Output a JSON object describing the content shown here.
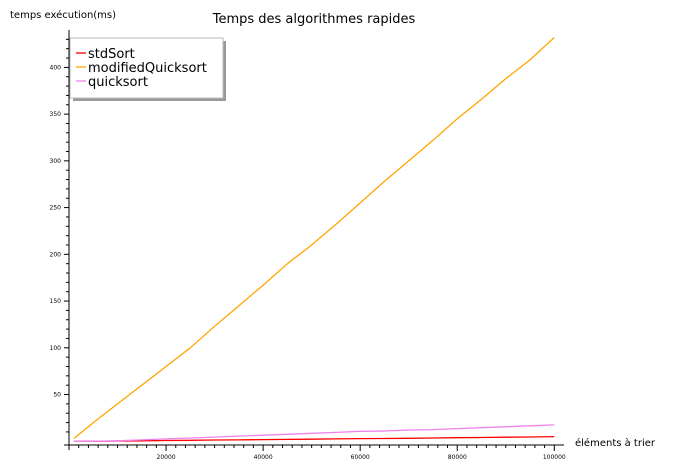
{
  "chart_data": {
    "type": "line",
    "title": "Temps des algorithmes rapides",
    "xlabel": "éléments à trier",
    "ylabel": "temps exécution(ms)",
    "xlim": [
      0,
      102000
    ],
    "ylim": [
      -4,
      440
    ],
    "grid": false,
    "legend_position": "top-left",
    "xticks": [
      20000,
      40000,
      60000,
      80000,
      100000
    ],
    "xtick_labels": [
      "20000",
      "40000",
      "60000",
      "80000",
      "100000"
    ],
    "yticks": [
      50,
      100,
      150,
      200,
      250,
      300,
      350,
      400
    ],
    "ytick_labels": [
      "50",
      "100",
      "150",
      "200",
      "250",
      "300",
      "350",
      "400"
    ],
    "x": [
      1000,
      5000,
      10000,
      15000,
      20000,
      25000,
      30000,
      35000,
      40000,
      45000,
      50000,
      55000,
      60000,
      65000,
      70000,
      75000,
      80000,
      85000,
      90000,
      95000,
      100000
    ],
    "series": [
      {
        "name": "stdSort",
        "color": "#ff0000",
        "values": [
          0,
          0,
          0.3,
          0.5,
          0.8,
          1,
          1.3,
          1.5,
          1.8,
          2,
          2.2,
          2.5,
          2.8,
          3,
          3.2,
          3.5,
          3.8,
          4,
          4.3,
          4.6,
          5
        ]
      },
      {
        "name": "modifiedQuicksort",
        "color": "#ffa500",
        "values": [
          3,
          20,
          40,
          60,
          80,
          100,
          123,
          145,
          167,
          190,
          210,
          232,
          255,
          278,
          300,
          322,
          345,
          366,
          388,
          408,
          432
        ]
      },
      {
        "name": "quicksort",
        "color": "#ee82ee",
        "values": [
          0,
          0,
          0.5,
          1.5,
          2.5,
          3.5,
          4.5,
          5.5,
          6.5,
          7.5,
          8.5,
          9.5,
          10.5,
          11,
          12,
          12.5,
          13.5,
          14.5,
          15.5,
          16.5,
          17.5
        ]
      }
    ]
  }
}
